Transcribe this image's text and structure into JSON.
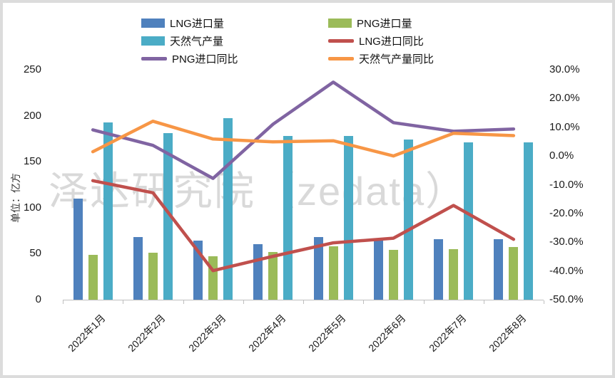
{
  "palette": {
    "lng_import_bar": "#4F81BD",
    "png_import_bar": "#9BBB59",
    "gas_production_bar": "#4BACC6",
    "lng_yoy_line": "#C0504D",
    "png_yoy_line": "#8064A2",
    "gas_yoy_line": "#F79646",
    "axis_line": "#BFBFBF",
    "frame_border": "#DCDCDC",
    "watermark_gray": "#D9D9D9",
    "tick_text": "#1A1A1A"
  },
  "chart": {
    "watermark": "泽达研究院（zedata）",
    "left_axis_title": "单位：亿方"
  },
  "chart_data": {
    "type": "combo-bar-line",
    "grid": false,
    "legend_position": "top",
    "categories": [
      "2022年1月",
      "2022年2月",
      "2022年3月",
      "2022年4月",
      "2022年5月",
      "2022年6月",
      "2022年7月",
      "2022年8月"
    ],
    "left_axis": {
      "title": "单位：亿方",
      "min": 0,
      "max": 250,
      "tick_step": 50,
      "tick_labels": [
        "250",
        "200",
        "150",
        "100",
        "50",
        "0"
      ]
    },
    "right_axis": {
      "min": -50,
      "max": 30,
      "tick_step": 10,
      "tick_labels": [
        "30.0%",
        "20.0%",
        "10.0%",
        "0.0%",
        "-10.0%",
        "-20.0%",
        "-30.0%",
        "-40.0%",
        "-50.0%"
      ]
    },
    "series": [
      {
        "name": "LNG进口量",
        "type": "bar",
        "axis": "left",
        "color": "#4F81BD",
        "values": [
          110,
          68,
          64,
          60,
          68,
          65,
          66,
          66
        ]
      },
      {
        "name": "PNG进口量",
        "type": "bar",
        "axis": "left",
        "color": "#9BBB59",
        "values": [
          49,
          51,
          47,
          52,
          58,
          54,
          55,
          57
        ]
      },
      {
        "name": "天然气产量",
        "type": "bar",
        "axis": "left",
        "color": "#4BACC6",
        "values": [
          193,
          181,
          197,
          178,
          178,
          174,
          171,
          171
        ]
      },
      {
        "name": "LNG进口同比",
        "type": "line",
        "axis": "right",
        "color": "#C0504D",
        "values": [
          -8.6,
          -12.8,
          -39.9,
          -34.9,
          -30.2,
          -28.6,
          -17.2,
          -29.0
        ]
      },
      {
        "name": "PNG进口同比",
        "type": "line",
        "axis": "right",
        "color": "#8064A2",
        "values": [
          9.1,
          3.7,
          -7.8,
          11.1,
          25.7,
          11.6,
          8.6,
          9.4
        ]
      },
      {
        "name": "天然气产量同比",
        "type": "line",
        "axis": "right",
        "color": "#F79646",
        "values": [
          1.5,
          12.1,
          5.9,
          4.9,
          5.3,
          0.0,
          7.9,
          7.1
        ]
      }
    ]
  }
}
